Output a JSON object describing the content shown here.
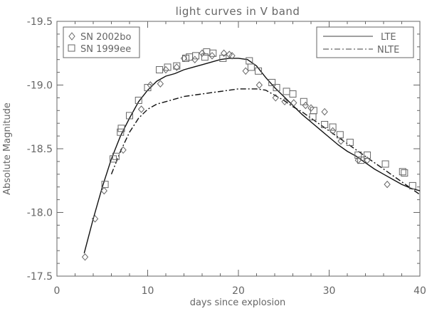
{
  "chart_data": {
    "type": "scatter",
    "title": "light curves in V band",
    "xlabel": "days since explosion",
    "ylabel": "Absolute Magnitude",
    "xlim": [
      0,
      40
    ],
    "ylim": [
      -17.5,
      -19.5
    ],
    "inverted_y": true,
    "grid": false,
    "x_ticks": [
      0,
      10,
      20,
      30,
      40
    ],
    "y_ticks": [
      -19.5,
      -19.0,
      -18.5,
      -18.0,
      -17.5
    ],
    "x_tick_labels": [
      "0",
      "10",
      "20",
      "30",
      "40"
    ],
    "y_tick_labels": [
      "-19.5",
      "-19.0",
      "-18.5",
      "-18.0",
      "-17.5"
    ],
    "legend_points": {
      "placement": "top-left",
      "entries": [
        "SN 2002bo",
        "SN 1999ee"
      ]
    },
    "legend_lines": {
      "placement": "top-right",
      "entries": [
        "LTE",
        "NLTE"
      ]
    },
    "color": "#666666",
    "series": [
      {
        "name": "SN 2002bo",
        "kind": "points",
        "marker": "diamond",
        "x": [
          3.1,
          4.2,
          5.2,
          7.3,
          9.3,
          10.3,
          11.4,
          12.0,
          13.2,
          14.0,
          15.2,
          16.0,
          17.1,
          18.4,
          19.0,
          19.3,
          20.8,
          22.3,
          24.1,
          25.1,
          26.1,
          27.4,
          28.0,
          29.5,
          30.4,
          31.3,
          33.2,
          34.2,
          36.4
        ],
        "y": [
          -17.65,
          -17.95,
          -18.17,
          -18.49,
          -18.81,
          -19.0,
          -19.01,
          -19.12,
          -19.14,
          -19.21,
          -19.2,
          -19.25,
          -19.23,
          -19.25,
          -19.24,
          -19.23,
          -19.11,
          -19.0,
          -18.9,
          -18.87,
          -18.86,
          -18.84,
          -18.82,
          -18.79,
          -18.64,
          -18.56,
          -18.41,
          -18.41,
          -18.22
        ]
      },
      {
        "name": "SN 1999ee",
        "kind": "points",
        "marker": "square",
        "x": [
          5.3,
          6.2,
          6.5,
          7.0,
          7.1,
          8.0,
          9.0,
          10.0,
          11.3,
          12.2,
          13.2,
          14.2,
          14.6,
          15.3,
          16.3,
          16.5,
          17.2,
          18.3,
          21.2,
          21.4,
          22.2,
          23.7,
          24.2,
          25.3,
          26.0,
          27.2,
          28.3,
          28.2,
          29.5,
          30.4,
          31.2,
          32.3,
          33.2,
          33.5,
          34.2,
          36.2,
          38.1,
          38.3,
          39.2
        ],
        "y": [
          -18.22,
          -18.42,
          -18.44,
          -18.63,
          -18.66,
          -18.76,
          -18.88,
          -18.98,
          -19.12,
          -19.14,
          -19.15,
          -19.21,
          -19.22,
          -19.23,
          -19.22,
          -19.26,
          -19.25,
          -19.21,
          -19.19,
          -19.14,
          -19.11,
          -19.02,
          -18.98,
          -18.95,
          -18.93,
          -18.87,
          -18.8,
          -18.75,
          -18.69,
          -18.67,
          -18.61,
          -18.55,
          -18.45,
          -18.41,
          -18.45,
          -18.38,
          -18.32,
          -18.31,
          -18.21
        ]
      },
      {
        "name": "LTE",
        "kind": "line",
        "dash": "solid",
        "x": [
          3,
          4,
          5,
          6,
          7,
          8,
          9,
          10,
          11,
          12,
          13,
          14,
          15,
          16,
          17,
          18,
          19,
          20,
          21,
          22,
          23,
          24,
          25,
          26,
          27,
          28,
          29,
          30,
          31,
          32,
          33,
          34,
          35,
          36,
          37,
          38,
          39,
          40
        ],
        "y": [
          -17.68,
          -17.95,
          -18.2,
          -18.42,
          -18.6,
          -18.74,
          -18.87,
          -18.96,
          -19.03,
          -19.07,
          -19.09,
          -19.12,
          -19.14,
          -19.16,
          -19.18,
          -19.2,
          -19.21,
          -19.21,
          -19.2,
          -19.15,
          -19.06,
          -18.98,
          -18.91,
          -18.84,
          -18.77,
          -18.71,
          -18.65,
          -18.59,
          -18.53,
          -18.48,
          -18.44,
          -18.39,
          -18.34,
          -18.3,
          -18.26,
          -18.22,
          -18.19,
          -18.17
        ]
      },
      {
        "name": "NLTE",
        "kind": "line",
        "dash": "dashdot",
        "x": [
          6,
          7,
          8,
          9,
          10,
          11,
          12,
          13,
          14,
          15,
          16,
          17,
          18,
          19,
          20,
          21,
          22,
          23,
          24,
          25,
          26,
          27,
          28,
          29,
          30,
          31,
          32,
          33,
          34,
          35,
          36,
          37,
          38,
          39,
          40
        ],
        "y": [
          -18.3,
          -18.48,
          -18.63,
          -18.74,
          -18.81,
          -18.85,
          -18.87,
          -18.89,
          -18.91,
          -18.92,
          -18.93,
          -18.94,
          -18.95,
          -18.96,
          -18.97,
          -18.97,
          -18.97,
          -18.96,
          -18.92,
          -18.88,
          -18.83,
          -18.79,
          -18.74,
          -18.69,
          -18.64,
          -18.59,
          -18.54,
          -18.49,
          -18.44,
          -18.39,
          -18.34,
          -18.29,
          -18.24,
          -18.19,
          -18.14
        ]
      }
    ]
  }
}
